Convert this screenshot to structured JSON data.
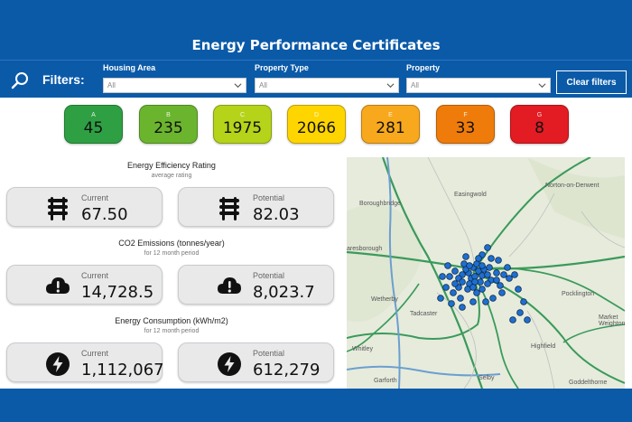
{
  "header": {
    "title": "Energy Performance Certificates"
  },
  "filters": {
    "label": "Filters:",
    "items": [
      {
        "label": "Housing Area",
        "value": "All"
      },
      {
        "label": "Property Type",
        "value": "All"
      },
      {
        "label": "Property",
        "value": "All"
      }
    ],
    "clear_label": "Clear filters"
  },
  "ratings": [
    {
      "letter": "A",
      "count": "45",
      "color": "#2ea043"
    },
    {
      "letter": "B",
      "count": "235",
      "color": "#6bb52e"
    },
    {
      "letter": "C",
      "count": "1975",
      "color": "#b5d319"
    },
    {
      "letter": "D",
      "count": "2066",
      "color": "#ffd500"
    },
    {
      "letter": "E",
      "count": "281",
      "color": "#f7a81c"
    },
    {
      "letter": "F",
      "count": "33",
      "color": "#ef7c0a"
    },
    {
      "letter": "G",
      "count": "8",
      "color": "#e31b23"
    }
  ],
  "sections": [
    {
      "title": "Energy Efficiency Rating",
      "subtitle": "average rating",
      "icon": "radiator-icon",
      "current": {
        "label": "Current",
        "value": "67.50"
      },
      "potential": {
        "label": "Potential",
        "value": "82.03"
      }
    },
    {
      "title": "CO2 Emissions (tonnes/year)",
      "subtitle": "for 12 month period",
      "icon": "cloud-warning-icon",
      "current": {
        "label": "Current",
        "value": "14,728.5"
      },
      "potential": {
        "label": "Potential",
        "value": "8,023.7"
      }
    },
    {
      "title": "Energy Consumption (kWh/m2)",
      "subtitle": "for 12 month period",
      "icon": "lightning-icon",
      "current": {
        "label": "Current",
        "value": "1,112,067"
      },
      "potential": {
        "label": "Potential",
        "value": "612,279"
      }
    }
  ],
  "map": {
    "places": [
      "Easingwold",
      "Norton-on-Derwent",
      "Boroughbridge",
      "aresborough",
      "Pocklington",
      "Wetherby",
      "Market Weighton",
      "Tadcaster",
      "Whitley",
      "Highfield",
      "Garforth",
      "Selby",
      "Goddelthorne"
    ],
    "pin_color": "#1f6fd1"
  }
}
